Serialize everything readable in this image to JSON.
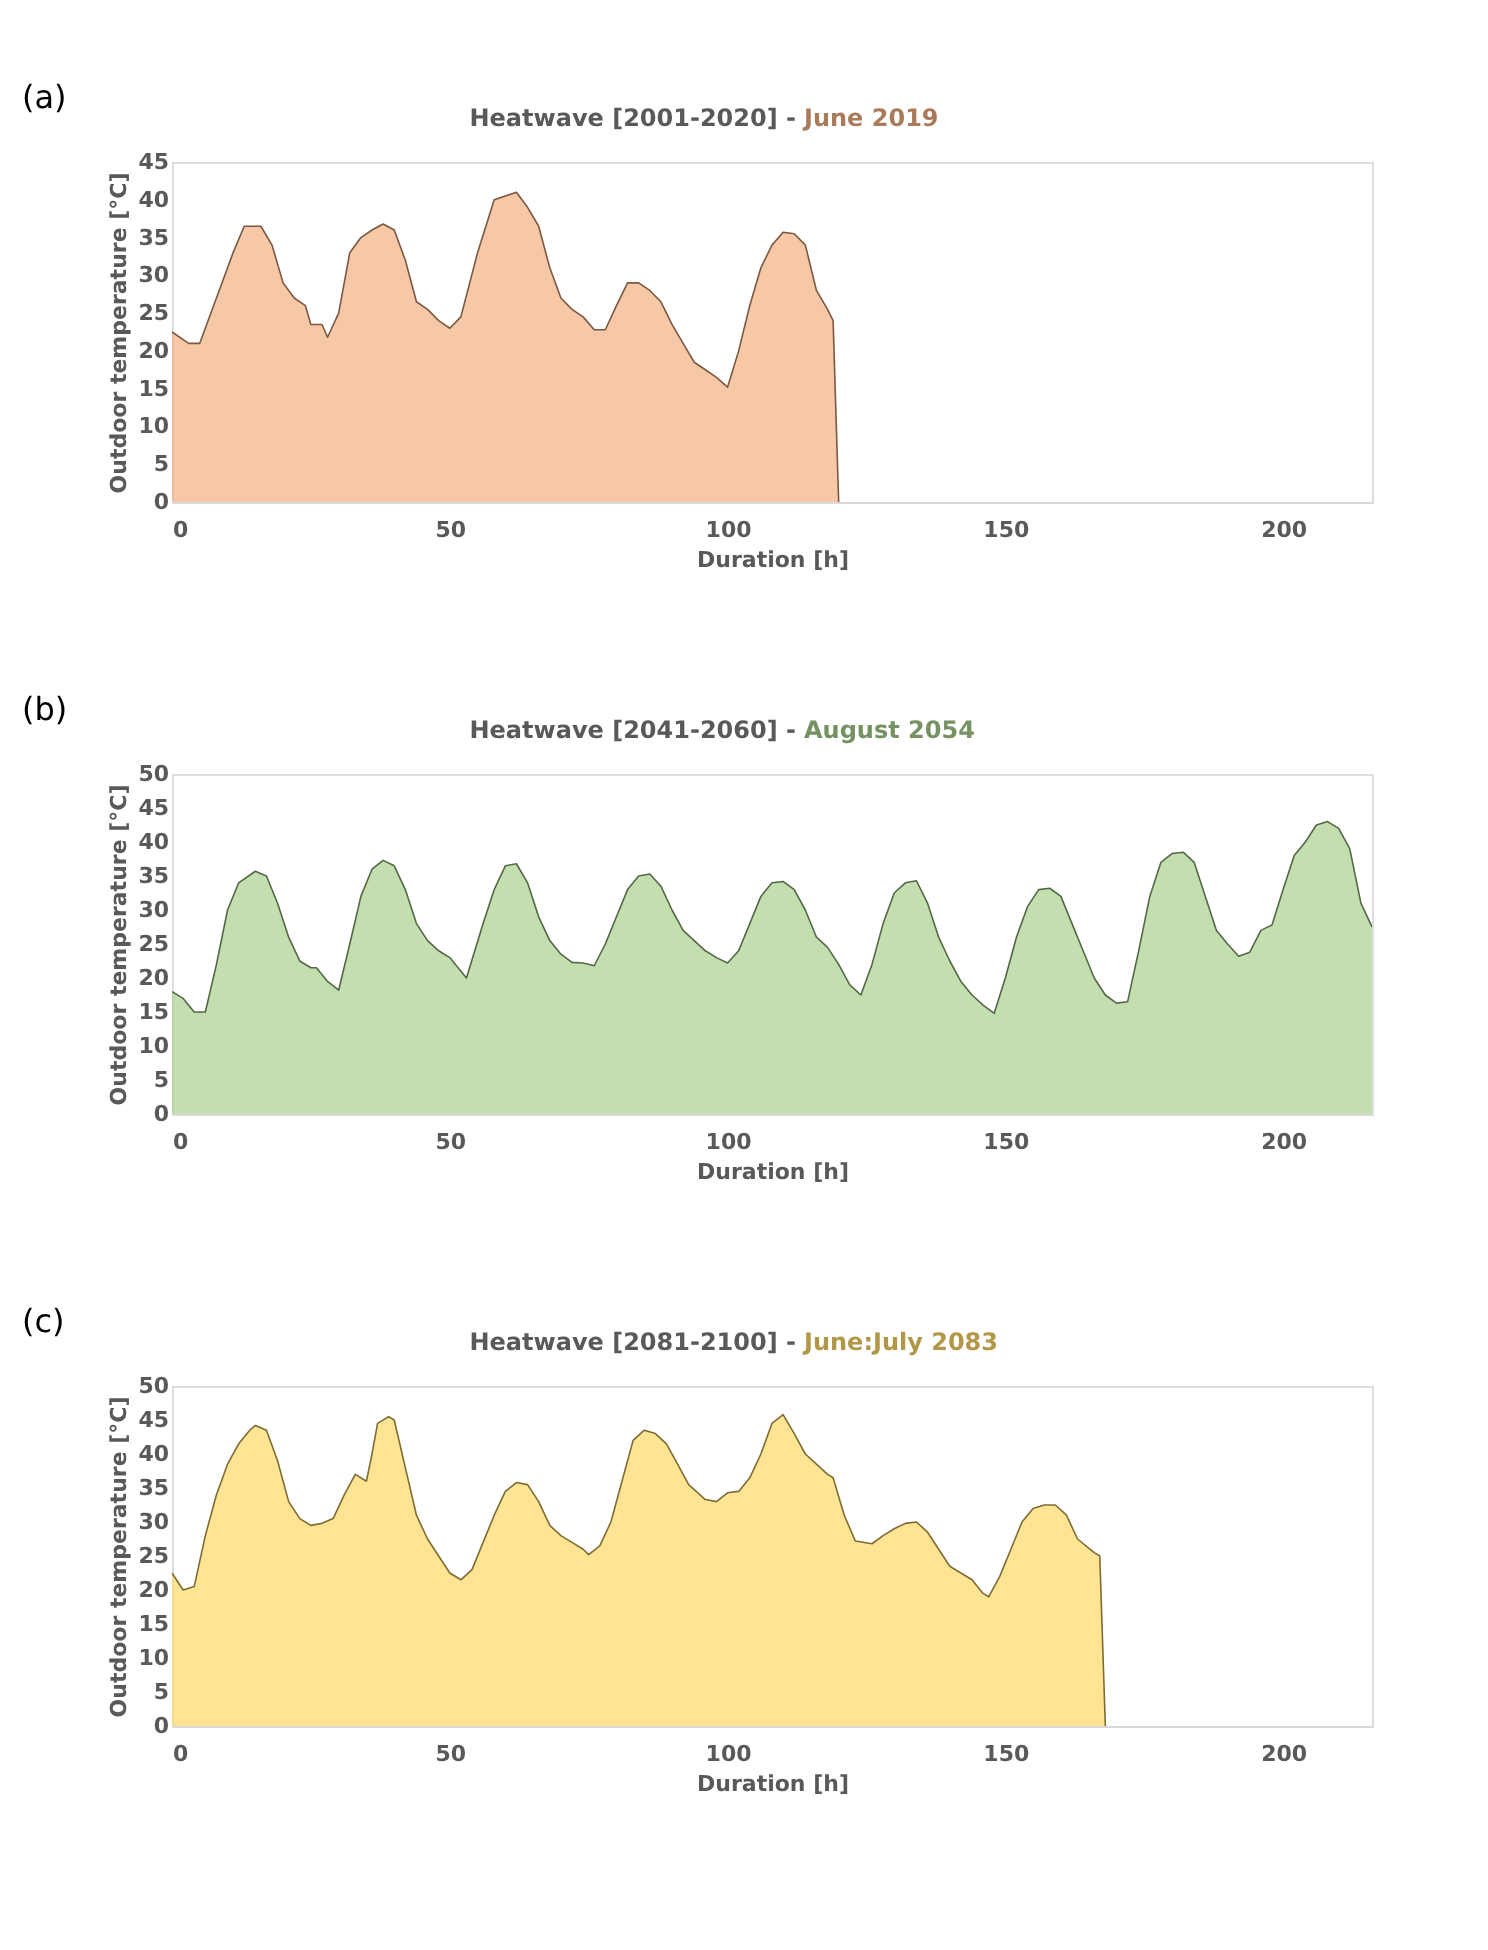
{
  "chart_data": [
    {
      "type": "area",
      "title": "Heatwave [2001-2020] -",
      "subtitle": "June 2019",
      "annotations": [
        "(a)"
      ],
      "xlabel": "Duration [h]",
      "ylabel": "Outdoor temperature [°C]",
      "xlim": [
        0,
        216
      ],
      "xticks": [
        0,
        50,
        100,
        150,
        200
      ],
      "ylim": [
        0,
        45
      ],
      "yticks": [
        0,
        5,
        10,
        15,
        20,
        25,
        30,
        35,
        40,
        45
      ],
      "grid": false,
      "x": [
        0,
        3,
        5,
        8,
        11,
        13,
        16,
        18,
        20,
        22,
        24,
        25,
        27,
        28,
        30,
        32,
        34,
        36,
        38,
        40,
        42,
        44,
        46,
        48,
        50,
        52,
        55,
        58,
        60,
        62,
        64,
        66,
        68,
        70,
        72,
        74,
        76,
        78,
        80,
        82,
        84,
        86,
        88,
        90,
        92,
        94,
        96,
        98,
        100,
        102,
        104,
        106,
        108,
        110,
        112,
        114,
        116,
        118,
        119,
        120
      ],
      "series": [
        {
          "color": "#f4b183",
          "values": [
            22.5,
            21,
            21,
            27,
            33,
            36.5,
            36.5,
            34,
            29,
            27,
            26,
            23.5,
            23.5,
            21.8,
            25,
            33,
            35,
            36,
            36.8,
            36,
            32,
            26.5,
            25.5,
            24,
            23,
            24.5,
            33,
            40,
            40.5,
            41,
            39,
            36.5,
            31,
            27,
            25.5,
            24.5,
            22.8,
            22.8,
            26,
            29,
            29,
            28,
            26.5,
            23.5,
            21,
            18.5,
            17.5,
            16.5,
            15.2,
            20,
            26,
            31,
            34,
            35.7,
            35.5,
            34,
            28,
            25.5,
            24,
            0
          ]
        }
      ]
    },
    {
      "type": "area",
      "title": "Heatwave [2041-2060] -",
      "subtitle": "August 2054",
      "annotations": [
        "(b)"
      ],
      "xlabel": "Duration [h]",
      "ylabel": "Outdoor temperature [°C]",
      "xlim": [
        0,
        216
      ],
      "xticks": [
        0,
        50,
        100,
        150,
        200
      ],
      "ylim": [
        0,
        50
      ],
      "yticks": [
        0,
        5,
        10,
        15,
        20,
        25,
        30,
        35,
        40,
        45,
        50
      ],
      "grid": false,
      "x": [
        0,
        2,
        4,
        6,
        8,
        10,
        12,
        15,
        17,
        19,
        21,
        23,
        25,
        26,
        28,
        30,
        32,
        34,
        36,
        38,
        40,
        42,
        44,
        46,
        48,
        50,
        53,
        56,
        58,
        60,
        62,
        64,
        66,
        68,
        70,
        72,
        74,
        76,
        78,
        80,
        82,
        84,
        86,
        88,
        90,
        92,
        94,
        96,
        98,
        100,
        102,
        104,
        106,
        108,
        110,
        112,
        114,
        116,
        118,
        120,
        122,
        124,
        126,
        128,
        130,
        132,
        134,
        136,
        138,
        140,
        142,
        144,
        146,
        148,
        150,
        152,
        154,
        156,
        158,
        160,
        162,
        164,
        166,
        168,
        170,
        172,
        174,
        176,
        178,
        180,
        182,
        184,
        186,
        188,
        190,
        192,
        194,
        196,
        198,
        200,
        202,
        204,
        206,
        208,
        210,
        212,
        214,
        216
      ],
      "series": [
        {
          "color": "#a9d18e",
          "values": [
            18,
            17,
            15,
            15,
            22,
            30,
            34,
            35.7,
            35,
            31,
            26,
            22.5,
            21.5,
            21.5,
            19.5,
            18.2,
            25,
            32,
            36,
            37.3,
            36.5,
            33,
            28,
            25.5,
            24,
            23,
            20,
            28,
            33,
            36.5,
            36.8,
            34,
            29,
            25.5,
            23.5,
            22.3,
            22.2,
            21.8,
            25,
            29,
            33,
            35,
            35.3,
            33.5,
            30,
            27,
            25.5,
            24,
            23,
            22.2,
            24,
            28,
            32,
            34,
            34.2,
            33,
            30,
            26,
            24.5,
            22,
            19,
            17.5,
            22,
            28,
            32.5,
            34,
            34.3,
            31,
            26,
            22.5,
            19.5,
            17.5,
            16,
            14.8,
            20,
            26,
            30.5,
            33,
            33.2,
            32,
            28,
            24,
            20,
            17.5,
            16.3,
            16.5,
            24,
            32,
            37,
            38.3,
            38.5,
            37,
            32,
            27,
            25,
            23.2,
            23.8,
            27,
            27.8,
            33,
            38,
            40,
            42.5,
            43,
            42,
            39,
            31,
            27.5
          ]
        }
      ]
    },
    {
      "type": "area",
      "title": "Heatwave [2081-2100] -",
      "subtitle": "June:July 2083",
      "annotations": [
        "(c)"
      ],
      "xlabel": "Duration [h]",
      "ylabel": "Outdoor temperature [°C]",
      "xlim": [
        0,
        216
      ],
      "xticks": [
        0,
        50,
        100,
        150,
        200
      ],
      "ylim": [
        0,
        50
      ],
      "yticks": [
        0,
        5,
        10,
        15,
        20,
        25,
        30,
        35,
        40,
        45,
        50
      ],
      "grid": false,
      "x": [
        0,
        2,
        4,
        6,
        8,
        10,
        12,
        14,
        15,
        17,
        19,
        21,
        23,
        25,
        27,
        29,
        31,
        33,
        35,
        36,
        37,
        39,
        40,
        42,
        44,
        46,
        48,
        50,
        52,
        54,
        56,
        58,
        60,
        62,
        64,
        66,
        68,
        70,
        72,
        74,
        75,
        77,
        79,
        81,
        83,
        85,
        87,
        89,
        91,
        93,
        96,
        98,
        100,
        102,
        104,
        106,
        108,
        110,
        112,
        114,
        116,
        118,
        119,
        121,
        123,
        126,
        128,
        130,
        132,
        134,
        136,
        138,
        140,
        142,
        144,
        146,
        147,
        149,
        151,
        153,
        155,
        157,
        159,
        161,
        163,
        166,
        167,
        168
      ],
      "series": [
        {
          "color": "#ffd966",
          "values": [
            22.5,
            20,
            20.5,
            28,
            34,
            38.5,
            41.5,
            43.5,
            44.2,
            43.5,
            39,
            33,
            30.5,
            29.5,
            29.8,
            30.5,
            34,
            37,
            36,
            40,
            44.5,
            45.5,
            45,
            38,
            31,
            27.5,
            25,
            22.5,
            21.5,
            23,
            27,
            31,
            34.5,
            35.8,
            35.5,
            33,
            29.5,
            28,
            27,
            26,
            25.2,
            26.5,
            30,
            36,
            42,
            43.5,
            43,
            41.5,
            38.5,
            35.5,
            33.3,
            33,
            34.3,
            34.5,
            36.5,
            40,
            44.5,
            45.8,
            43,
            40,
            38.5,
            37,
            36.5,
            31,
            27.2,
            26.8,
            28,
            29,
            29.8,
            30,
            28.5,
            26,
            23.5,
            22.5,
            21.5,
            19.5,
            19,
            22,
            26,
            30,
            32,
            32.5,
            32.5,
            31,
            27.5,
            25.5,
            25,
            0
          ]
        }
      ]
    }
  ]
}
